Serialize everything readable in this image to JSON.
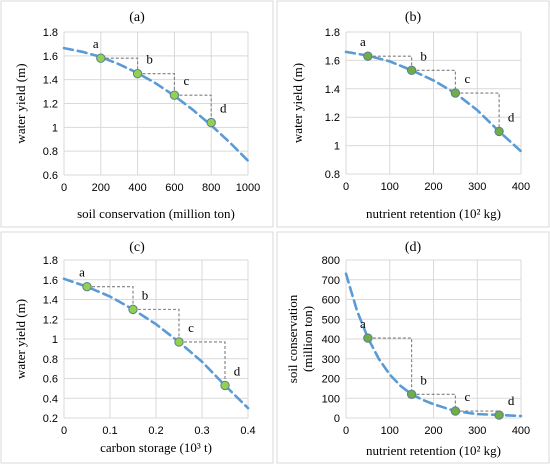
{
  "chart_data": [
    {
      "type": "scatter",
      "title": "(a)",
      "xlabel": "soil conservation (million ton)",
      "ylabel": "water yield (m)",
      "xlim": [
        0,
        1000
      ],
      "ylim": [
        0.6,
        1.8
      ],
      "xticks": [
        0,
        200,
        400,
        600,
        800,
        1000
      ],
      "yticks": [
        0.6,
        0.8,
        1,
        1.2,
        1.4,
        1.6,
        1.8
      ],
      "grid": true,
      "point_color": "#92D050",
      "curve_color": "#5B9BD5",
      "points": [
        {
          "x": 200,
          "y": 1.58,
          "label": "a"
        },
        {
          "x": 400,
          "y": 1.45,
          "label": "b"
        },
        {
          "x": 600,
          "y": 1.27,
          "label": "c"
        },
        {
          "x": 800,
          "y": 1.04,
          "label": "d"
        }
      ],
      "curve": {
        "x": [
          0,
          100,
          200,
          300,
          400,
          500,
          600,
          700,
          800,
          900,
          1000
        ],
        "y": [
          1.665,
          1.634,
          1.59,
          1.529,
          1.456,
          1.368,
          1.265,
          1.147,
          1.017,
          0.874,
          0.72
        ]
      }
    },
    {
      "type": "scatter",
      "title": "(b)",
      "xlabel": "nutrient retention (10² kg)",
      "ylabel": "water  yield (m)",
      "xlim": [
        0,
        400
      ],
      "ylim": [
        0.8,
        1.8
      ],
      "xticks": [
        0,
        100,
        200,
        300,
        400
      ],
      "yticks": [
        0.8,
        1,
        1.2,
        1.4,
        1.6,
        1.8
      ],
      "grid": true,
      "point_color": "#70AD47",
      "curve_color": "#5B9BD5",
      "points": [
        {
          "x": 50,
          "y": 1.63,
          "label": "a"
        },
        {
          "x": 150,
          "y": 1.53,
          "label": "b"
        },
        {
          "x": 250,
          "y": 1.37,
          "label": "c"
        },
        {
          "x": 350,
          "y": 1.1,
          "label": "d"
        }
      ],
      "curve": {
        "x": [
          0,
          50,
          100,
          150,
          200,
          250,
          300,
          350,
          400
        ],
        "y": [
          1.66,
          1.634,
          1.593,
          1.53,
          1.459,
          1.369,
          1.249,
          1.1,
          0.96
        ]
      }
    },
    {
      "type": "scatter",
      "title": "(c)",
      "xlabel": "carbon storage (10³ t)",
      "ylabel": "water  yield (m)",
      "xlim": [
        0,
        0.4
      ],
      "ylim": [
        0.2,
        1.8
      ],
      "xticks": [
        0,
        0.1,
        0.2,
        0.3,
        0.4
      ],
      "yticks": [
        0.2,
        0.4,
        0.6,
        0.8,
        1,
        1.2,
        1.4,
        1.6,
        1.8
      ],
      "grid": true,
      "point_color": "#92D050",
      "curve_color": "#5B9BD5",
      "points": [
        {
          "x": 0.05,
          "y": 1.53,
          "label": "a"
        },
        {
          "x": 0.15,
          "y": 1.3,
          "label": "b"
        },
        {
          "x": 0.25,
          "y": 0.97,
          "label": "c"
        },
        {
          "x": 0.35,
          "y": 0.53,
          "label": "d"
        }
      ],
      "curve": {
        "x": [
          0,
          0.05,
          0.1,
          0.15,
          0.2,
          0.25,
          0.3,
          0.35,
          0.4
        ],
        "y": [
          1.61,
          1.53,
          1.43,
          1.3,
          1.15,
          0.97,
          0.77,
          0.53,
          0.3
        ]
      }
    },
    {
      "type": "scatter",
      "title": "(d)",
      "xlabel": "nutrient retention (10² kg)",
      "ylabel_lines": [
        "soil conservation",
        "(million ton)"
      ],
      "xlim": [
        0,
        400
      ],
      "ylim": [
        0,
        800
      ],
      "xticks": [
        0,
        100,
        200,
        300,
        400
      ],
      "yticks": [
        0,
        100,
        200,
        300,
        400,
        500,
        600,
        700,
        800
      ],
      "grid": true,
      "point_color": "#70AD47",
      "curve_color": "#5B9BD5",
      "points": [
        {
          "x": 50,
          "y": 405,
          "label": "a"
        },
        {
          "x": 150,
          "y": 120,
          "label": "b"
        },
        {
          "x": 250,
          "y": 35,
          "label": "c"
        },
        {
          "x": 350,
          "y": 15,
          "label": "d"
        }
      ],
      "curve": {
        "x": [
          0,
          25,
          50,
          75,
          100,
          125,
          150,
          175,
          200,
          250,
          300,
          350,
          400
        ],
        "y": [
          730,
          545,
          405,
          300,
          220,
          162,
          120,
          92,
          70,
          35,
          20,
          15,
          10
        ]
      }
    }
  ]
}
